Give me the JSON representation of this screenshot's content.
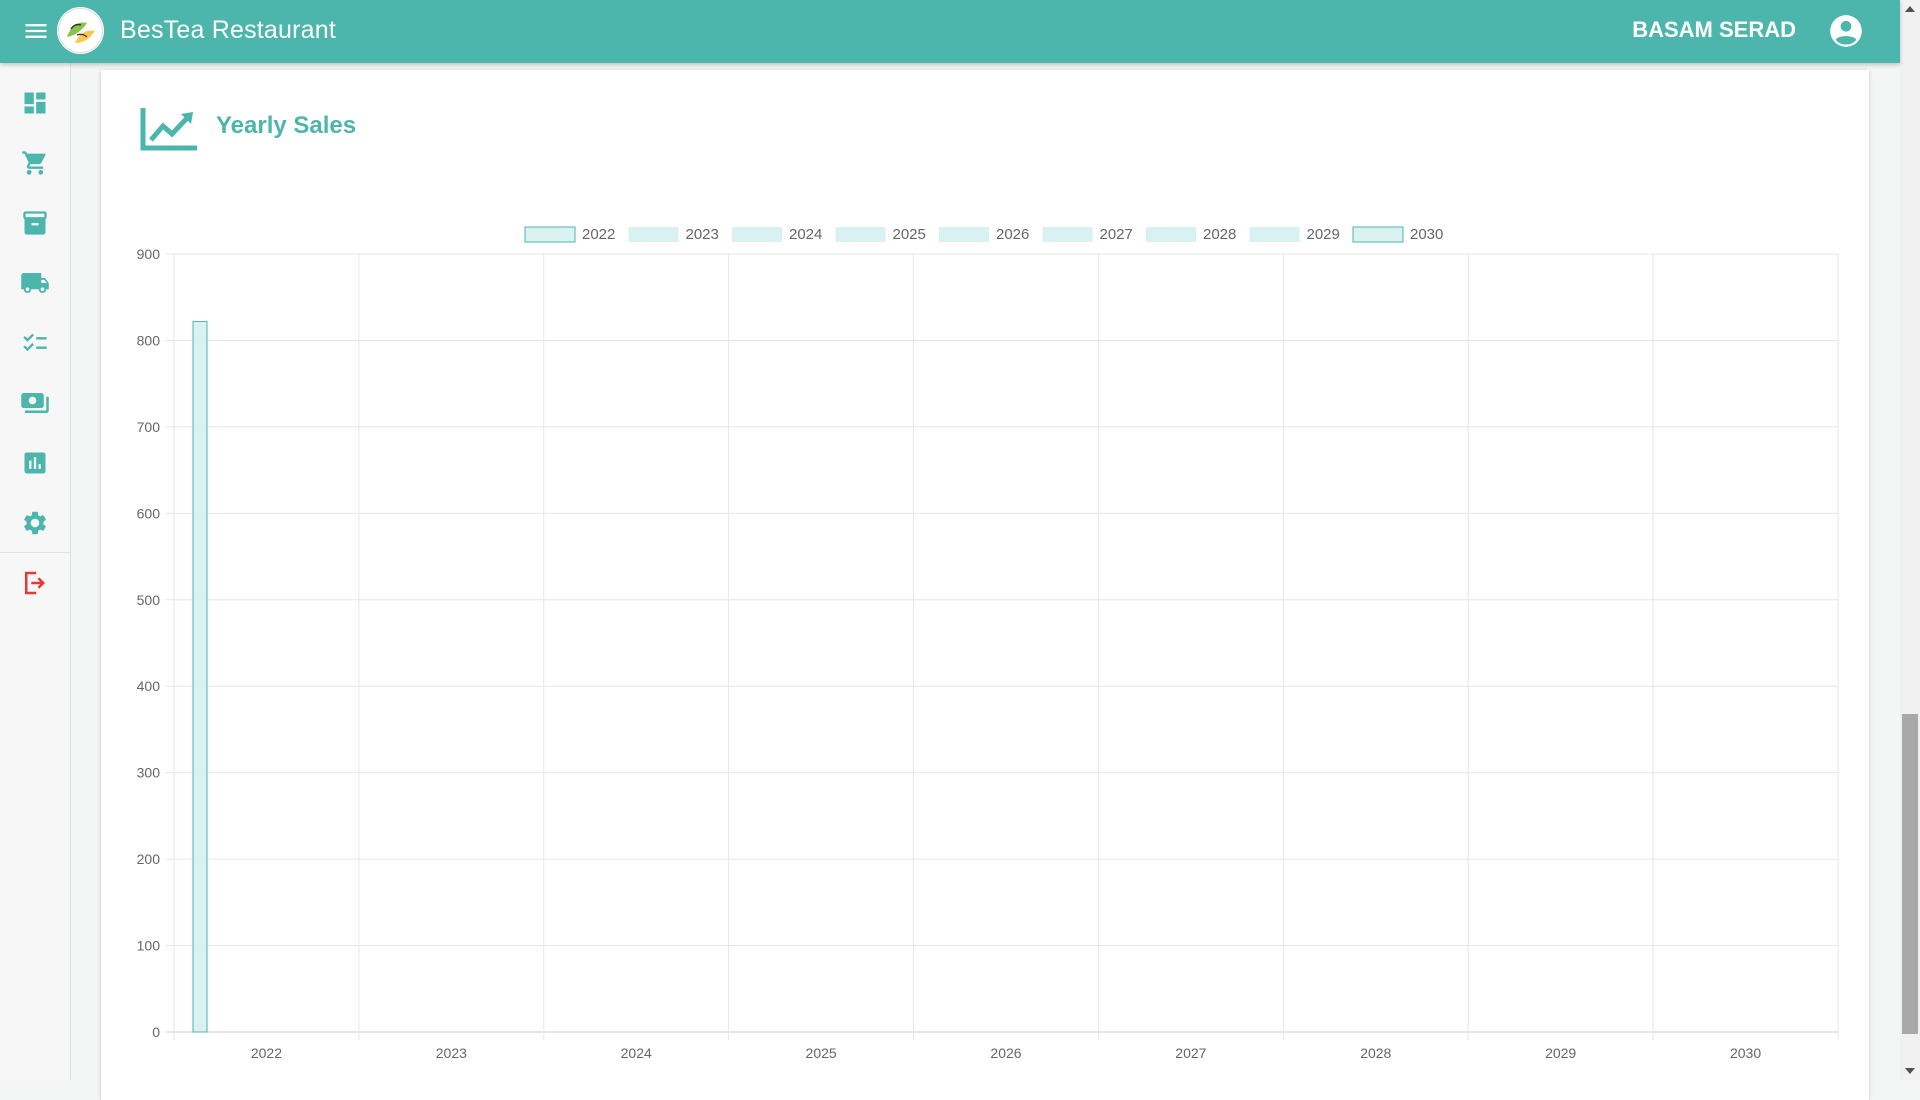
{
  "app": {
    "title": "BesTea Restaurant",
    "user_name": "BASAM SERAD",
    "accent_color": "#4db6ac",
    "logout_color": "#e53935"
  },
  "sidebar": {
    "items": [
      {
        "name": "dashboard",
        "icon": "dashboard-icon"
      },
      {
        "name": "orders",
        "icon": "cart-icon"
      },
      {
        "name": "inventory",
        "icon": "archive-icon"
      },
      {
        "name": "delivery",
        "icon": "truck-icon"
      },
      {
        "name": "tasks",
        "icon": "checklist-icon"
      },
      {
        "name": "payments",
        "icon": "money-icon"
      },
      {
        "name": "reports",
        "icon": "bar-chart-icon"
      },
      {
        "name": "settings",
        "icon": "gear-icon"
      },
      {
        "name": "logout",
        "icon": "logout-icon"
      }
    ]
  },
  "card": {
    "title": "Yearly Sales",
    "icon": "trending-up-icon"
  },
  "chart_data": {
    "type": "bar",
    "categories": [
      "2022",
      "2023",
      "2024",
      "2025",
      "2026",
      "2027",
      "2028",
      "2029",
      "2030"
    ],
    "series": [
      {
        "name": "2022",
        "values": [
          822,
          0,
          0,
          0,
          0,
          0,
          0,
          0,
          0
        ]
      },
      {
        "name": "2023",
        "values": [
          0,
          0,
          0,
          0,
          0,
          0,
          0,
          0,
          0
        ]
      },
      {
        "name": "2024",
        "values": [
          0,
          0,
          0,
          0,
          0,
          0,
          0,
          0,
          0
        ]
      },
      {
        "name": "2025",
        "values": [
          0,
          0,
          0,
          0,
          0,
          0,
          0,
          0,
          0
        ]
      },
      {
        "name": "2026",
        "values": [
          0,
          0,
          0,
          0,
          0,
          0,
          0,
          0,
          0
        ]
      },
      {
        "name": "2027",
        "values": [
          0,
          0,
          0,
          0,
          0,
          0,
          0,
          0,
          0
        ]
      },
      {
        "name": "2028",
        "values": [
          0,
          0,
          0,
          0,
          0,
          0,
          0,
          0,
          0
        ]
      },
      {
        "name": "2029",
        "values": [
          0,
          0,
          0,
          0,
          0,
          0,
          0,
          0,
          0
        ]
      },
      {
        "name": "2030",
        "values": [
          0,
          0,
          0,
          0,
          0,
          0,
          0,
          0,
          0
        ]
      }
    ],
    "yticks": [
      0,
      100,
      200,
      300,
      400,
      500,
      600,
      700,
      800,
      900
    ],
    "ylim": [
      0,
      900
    ],
    "grid": true,
    "legend_position": "top-center",
    "bar_fill": "#d9f1f0",
    "bar_stroke": "#4db6ac"
  }
}
